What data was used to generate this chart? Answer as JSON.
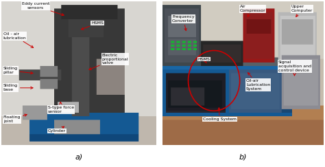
{
  "figsize": [
    4.74,
    2.43
  ],
  "dpi": 100,
  "bg_color": "#ffffff",
  "label_fontsize": 4.5,
  "arrow_color": "#cc0000",
  "panel_a_label": "a)",
  "panel_b_label": "b)",
  "panel_a_annotations": [
    {
      "text": "Eddy current\nsensors",
      "txy": [
        0.22,
        0.97
      ],
      "axy": [
        0.42,
        0.9
      ],
      "ha": "center"
    },
    {
      "text": "Oil - air\nlubrication",
      "txy": [
        0.01,
        0.76
      ],
      "axy": [
        0.22,
        0.67
      ],
      "ha": "left"
    },
    {
      "text": "HSMS",
      "txy": [
        0.58,
        0.85
      ],
      "axy": [
        0.5,
        0.8
      ],
      "ha": "left"
    },
    {
      "text": "Electric\nproportional\nvalve",
      "txy": [
        0.65,
        0.6
      ],
      "axy": [
        0.55,
        0.52
      ],
      "ha": "left"
    },
    {
      "text": "Sliding\npillar",
      "txy": [
        0.01,
        0.52
      ],
      "axy": [
        0.22,
        0.5
      ],
      "ha": "left"
    },
    {
      "text": "Sliding\nbase",
      "txy": [
        0.01,
        0.4
      ],
      "axy": [
        0.22,
        0.4
      ],
      "ha": "left"
    },
    {
      "text": "S-type force\nsensor",
      "txy": [
        0.3,
        0.25
      ],
      "axy": [
        0.38,
        0.32
      ],
      "ha": "left"
    },
    {
      "text": "Floating\njoint",
      "txy": [
        0.01,
        0.18
      ],
      "axy": [
        0.18,
        0.22
      ],
      "ha": "left"
    },
    {
      "text": "Cylinder",
      "txy": [
        0.3,
        0.1
      ],
      "axy": [
        0.42,
        0.14
      ],
      "ha": "left"
    }
  ],
  "panel_b_annotations": [
    {
      "text": "Frequency\nConverter",
      "txy": [
        0.06,
        0.88
      ],
      "axy": [
        0.15,
        0.78
      ],
      "ha": "left"
    },
    {
      "text": "HSMS",
      "txy": [
        0.22,
        0.6
      ],
      "axy": [
        0.28,
        0.56
      ],
      "ha": "left"
    },
    {
      "text": "Air\nCompressor",
      "txy": [
        0.48,
        0.95
      ],
      "axy": [
        0.52,
        0.88
      ],
      "ha": "left"
    },
    {
      "text": "Upper\nComputer",
      "txy": [
        0.8,
        0.95
      ],
      "axy": [
        0.82,
        0.88
      ],
      "ha": "left"
    },
    {
      "text": "Oil-air\nLubrication\nSystem",
      "txy": [
        0.52,
        0.42
      ],
      "axy": [
        0.52,
        0.52
      ],
      "ha": "left"
    },
    {
      "text": "Cooling System",
      "txy": [
        0.25,
        0.18
      ],
      "axy": [
        0.35,
        0.28
      ],
      "ha": "left"
    },
    {
      "text": "Signal\nacquisition and\ncontrol device",
      "txy": [
        0.72,
        0.55
      ],
      "axy": [
        0.82,
        0.48
      ],
      "ha": "left"
    }
  ]
}
